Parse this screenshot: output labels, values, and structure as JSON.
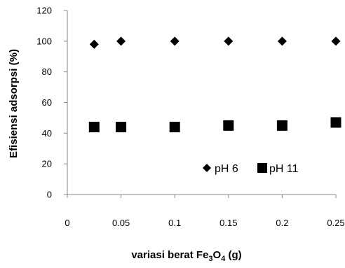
{
  "chart_data": {
    "type": "scatter",
    "title": "",
    "xlabel": "variasi berat Fe",
    "xlabel_sub1": "3",
    "xlabel_mid": "O",
    "xlabel_sub2": "4",
    "xlabel_tail": " (g)",
    "ylabel": "Efisiensi adsorpsi (%)",
    "xlim": [
      0,
      0.25
    ],
    "ylim": [
      0,
      120
    ],
    "x_ticks": [
      "0",
      "0.05",
      "0.1",
      "0.15",
      "0.2",
      "0.25"
    ],
    "y_ticks": [
      "0",
      "20",
      "40",
      "60",
      "80",
      "100",
      "120"
    ],
    "grid": false,
    "legend_position": "bottom-right",
    "series": [
      {
        "name": "pH 6",
        "marker": "diamond",
        "color": "#000000",
        "x": [
          0.025,
          0.05,
          0.1,
          0.15,
          0.2,
          0.25
        ],
        "y": [
          98,
          100,
          100,
          100,
          100,
          100
        ]
      },
      {
        "name": "pH 11",
        "marker": "square",
        "color": "#000000",
        "x": [
          0.025,
          0.05,
          0.1,
          0.15,
          0.2,
          0.25
        ],
        "y": [
          44,
          44,
          44,
          45,
          45,
          47
        ]
      }
    ]
  }
}
